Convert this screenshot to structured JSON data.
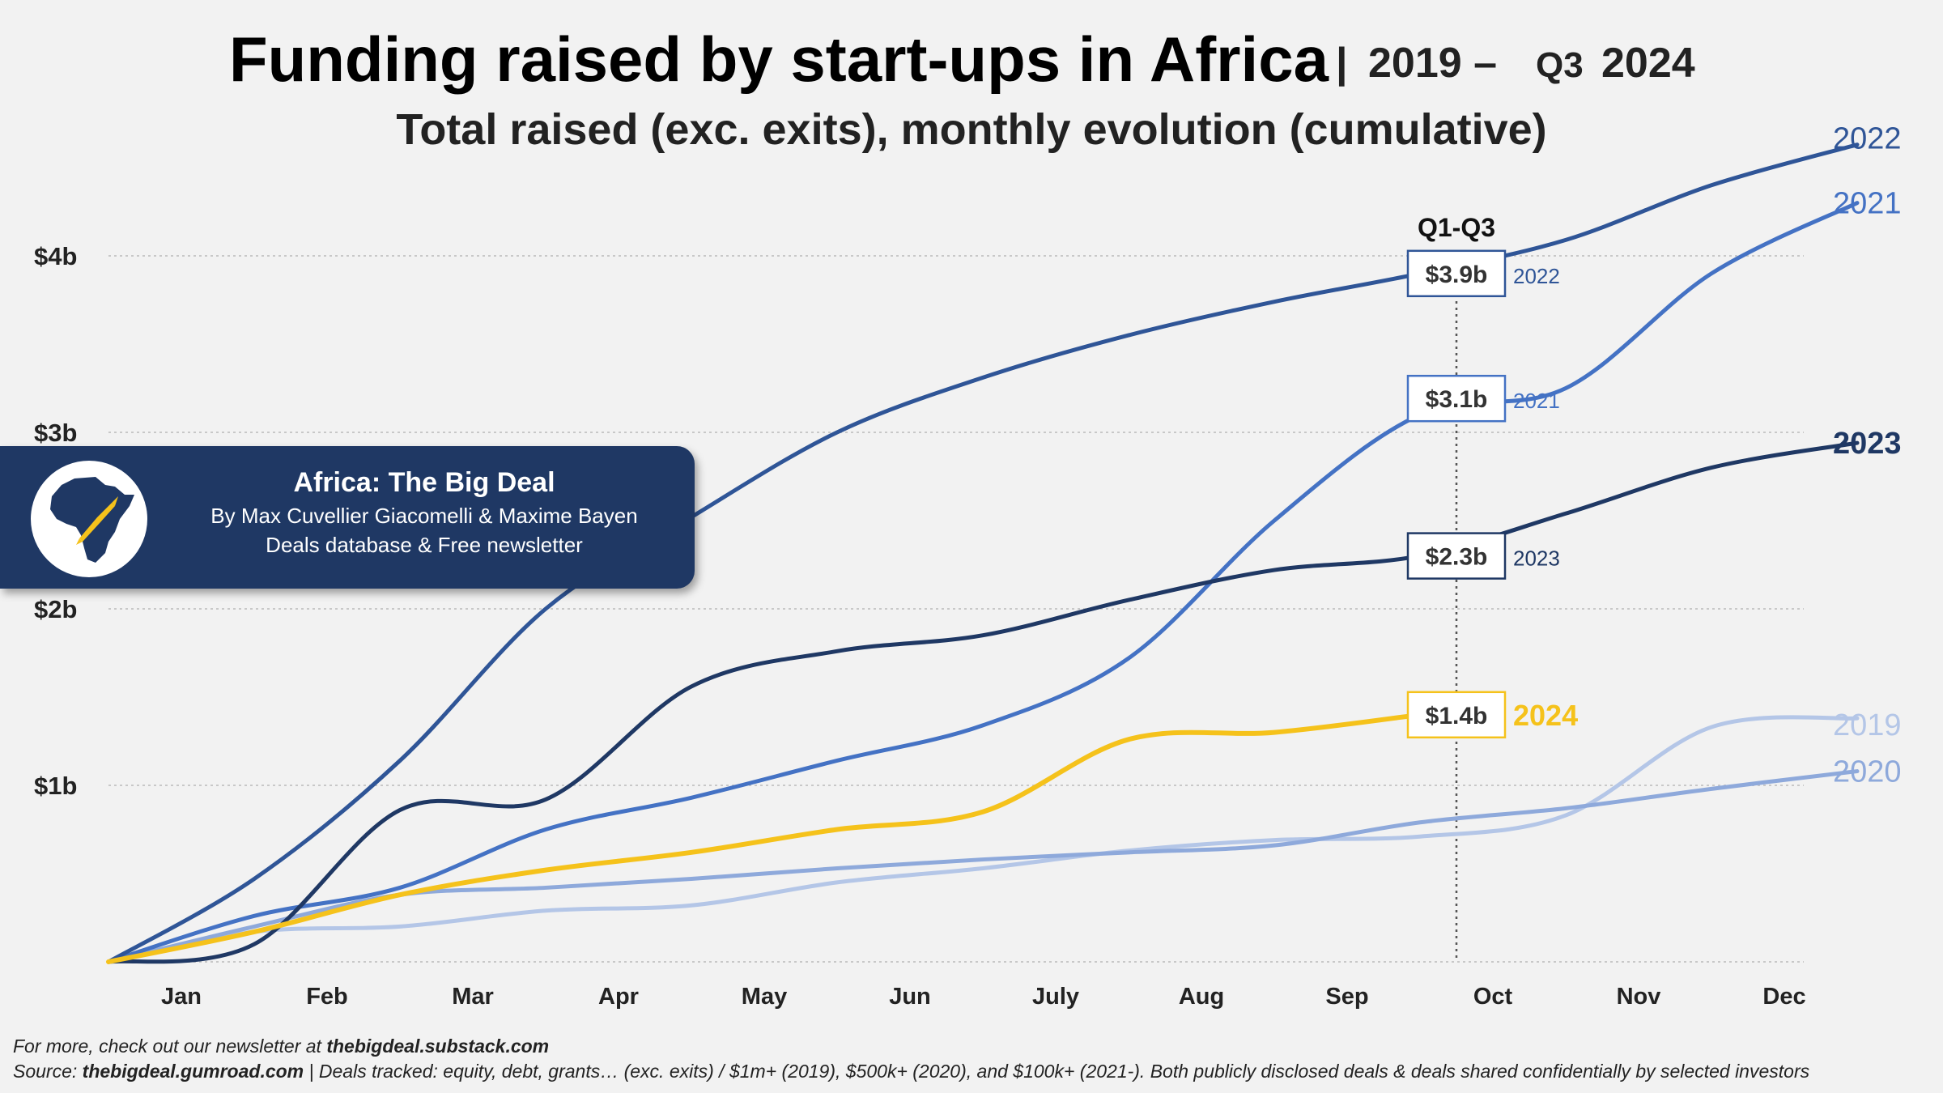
{
  "title": {
    "main": "Funding raised by start-ups in Africa",
    "separator": "|",
    "range_a": "2019 –",
    "range_q": "Q3",
    "range_b": "2024",
    "subtitle": "Total raised (exc. exits), monthly evolution (cumulative)"
  },
  "brand": {
    "name": "Africa: The Big Deal",
    "authors": "By Max Cuvellier Giacomelli & Maxime Bayen",
    "tagline": "Deals database & Free newsletter",
    "colors": {
      "background": "#1f3864",
      "rocket": "#f5c21b"
    }
  },
  "footer": {
    "line1_prefix": "For more, check out our newsletter at ",
    "line1_link": "thebigdeal.substack.com",
    "line2_prefix": "Source: ",
    "line2_link": "thebigdeal.gumroad.com",
    "line2_rest": " | Deals tracked: equity, debt, grants… (exc. exits) / $1m+ (2019), $500k+ (2020), and $100k+ (2021-). Both publicly disclosed deals & deals shared confidentially by selected investors"
  },
  "chart_data": {
    "type": "line",
    "title": "Funding raised by start-ups in Africa | 2019 – Q3 2024",
    "subtitle": "Total raised (exc. exits), monthly evolution (cumulative)",
    "categories": [
      "Jan",
      "Feb",
      "Mar",
      "Apr",
      "May",
      "Jun",
      "July",
      "Aug",
      "Sep",
      "Oct",
      "Nov",
      "Dec"
    ],
    "y_unit": "$b",
    "ylim": [
      0,
      4.3
    ],
    "y_ticks": [
      {
        "value": 1,
        "label": "$1b"
      },
      {
        "value": 2,
        "label": "$2b"
      },
      {
        "value": 3,
        "label": "$3b"
      },
      {
        "value": 4,
        "label": "$4b"
      }
    ],
    "grid": "horizontal dotted",
    "marker_line": {
      "label": "Q1-Q3",
      "position": "between Sep and Oct"
    },
    "series": [
      {
        "name": "2019",
        "color": "#b4c6e7",
        "x": [
          0,
          1,
          2,
          3,
          4,
          5,
          6,
          7,
          8,
          9,
          10,
          11,
          12
        ],
        "values": [
          0,
          0.17,
          0.2,
          0.29,
          0.32,
          0.45,
          0.53,
          0.63,
          0.69,
          0.71,
          0.83,
          1.33,
          1.38
        ]
      },
      {
        "name": "2020",
        "color": "#8ea9db",
        "x": [
          0,
          1,
          2,
          3,
          4,
          5,
          6,
          7,
          8,
          9,
          10,
          11,
          12
        ],
        "values": [
          0,
          0.2,
          0.38,
          0.42,
          0.47,
          0.53,
          0.58,
          0.62,
          0.66,
          0.79,
          0.87,
          0.98,
          1.08
        ]
      },
      {
        "name": "2021",
        "color": "#4472c4",
        "x": [
          0,
          1,
          2,
          3,
          4,
          5,
          6,
          7,
          8,
          9,
          10,
          11,
          12
        ],
        "values": [
          0,
          0.26,
          0.42,
          0.75,
          0.93,
          1.14,
          1.34,
          1.72,
          2.5,
          3.1,
          3.25,
          3.9,
          4.3
        ]
      },
      {
        "name": "2022",
        "color": "#2f5597",
        "x": [
          0,
          1,
          2,
          3,
          4,
          5,
          6,
          7,
          8,
          9,
          10,
          11,
          12
        ],
        "values": [
          0,
          0.47,
          1.14,
          2.0,
          2.52,
          3.0,
          3.31,
          3.55,
          3.74,
          3.9,
          4.09,
          4.4,
          4.63
        ]
      },
      {
        "name": "2023",
        "color": "#1f3864",
        "x": [
          0,
          1,
          2,
          3,
          4,
          5,
          6,
          7,
          8,
          9,
          10,
          11,
          12
        ],
        "values": [
          0,
          0.1,
          0.86,
          0.92,
          1.56,
          1.76,
          1.85,
          2.05,
          2.22,
          2.3,
          2.54,
          2.8,
          2.94
        ]
      },
      {
        "name": "2024",
        "color": "#f5c21b",
        "x": [
          0,
          1,
          2,
          3,
          4,
          5,
          6,
          7,
          8,
          9
        ],
        "values": [
          0,
          0.17,
          0.38,
          0.52,
          0.62,
          0.75,
          0.85,
          1.26,
          1.3,
          1.4
        ]
      }
    ],
    "callouts": [
      {
        "value_label": "$3.9b",
        "year": "2022",
        "value": 3.9,
        "color": "#2f5597"
      },
      {
        "value_label": "$3.1b",
        "year": "2021",
        "value": 3.1,
        "color": "#4472c4"
      },
      {
        "value_label": "$2.3b",
        "year": "2023",
        "value": 2.3,
        "color": "#1f3864"
      },
      {
        "value_label": "$1.4b",
        "year": "2024",
        "value": 1.4,
        "color": "#f5c21b"
      }
    ]
  }
}
